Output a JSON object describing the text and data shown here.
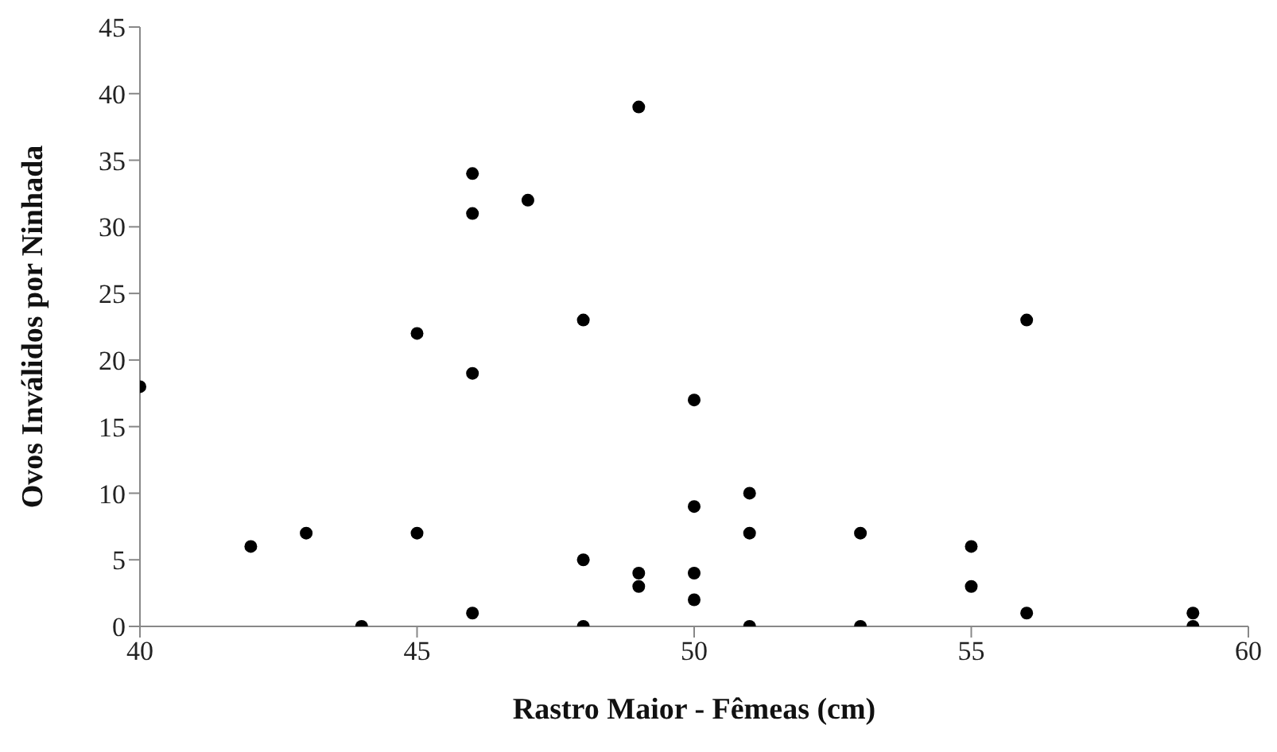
{
  "chart_data": {
    "type": "scatter",
    "xlabel": "Rastro Maior - Fêmeas (cm)",
    "ylabel": "Ovos Inválidos por Ninhada",
    "x": [
      40,
      42,
      43,
      44,
      45,
      45,
      46,
      46,
      46,
      46,
      47,
      48,
      48,
      48,
      49,
      49,
      49,
      50,
      50,
      50,
      50,
      51,
      51,
      51,
      53,
      53,
      55,
      55,
      56,
      56,
      59,
      59
    ],
    "values": [
      18,
      6,
      7,
      0,
      22,
      7,
      34,
      31,
      19,
      1,
      32,
      23,
      5,
      0,
      39,
      4,
      3,
      17,
      9,
      4,
      2,
      10,
      7,
      0,
      7,
      0,
      6,
      3,
      23,
      1,
      1,
      0
    ],
    "color": "#000000",
    "marker": "circle",
    "xlim": [
      40,
      60
    ],
    "xticks": [
      40,
      45,
      50,
      55,
      60
    ],
    "ylim": [
      0,
      45
    ],
    "yticks": [
      0,
      5,
      10,
      15,
      20,
      25,
      30,
      35,
      40,
      45
    ],
    "grid": false,
    "legend": false
  }
}
